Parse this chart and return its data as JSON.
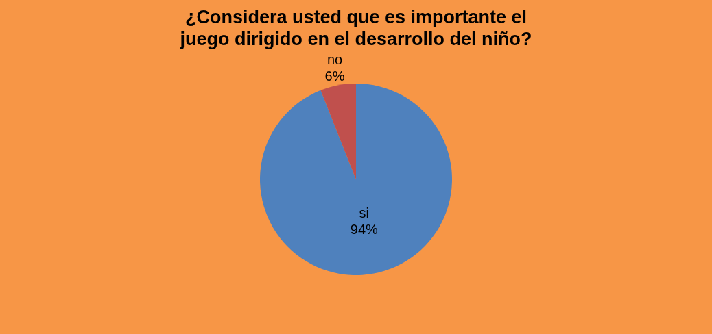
{
  "chart_data": {
    "type": "pie",
    "title": "¿Considera usted que es importante el juego dirigido en el desarrollo del niño?",
    "categories": [
      "si",
      "no"
    ],
    "values": [
      94,
      6
    ],
    "colors": [
      "#4f81bd",
      "#c0504d"
    ],
    "value_labels": [
      "94%",
      "6%"
    ],
    "legend": false
  }
}
